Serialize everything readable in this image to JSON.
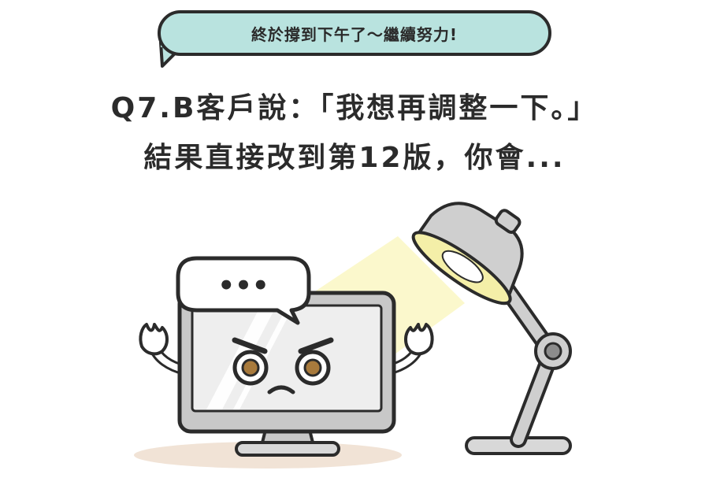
{
  "bubble": {
    "text": "終於撐到下午了～繼續努力!"
  },
  "question": {
    "line1": "Q7.B客戶說：「我想再調整一下。」",
    "line2": "結果直接改到第12版，你會..."
  },
  "speech_bubble_text": "•••",
  "colors": {
    "bubble_fill": "#b9e3df",
    "outline": "#2b2b2b",
    "lamp_light": "#fbf7c6",
    "monitor_gray": "#c8c8c8",
    "eye_brown": "#a87a3c",
    "shadow": "#f1e3d6"
  },
  "icons": {
    "character": "computer-monitor-character-icon",
    "lamp": "desk-lamp-icon"
  }
}
